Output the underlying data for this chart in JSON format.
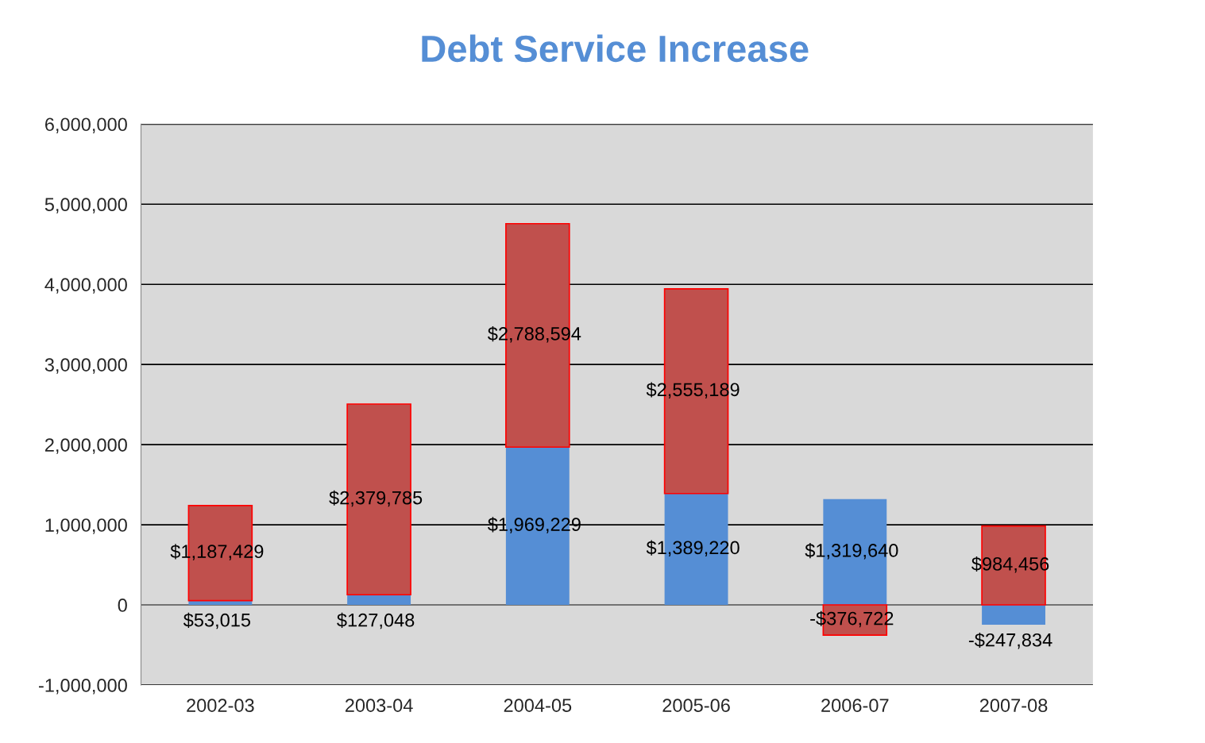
{
  "chart_data": {
    "type": "bar",
    "title": "Debt Service Increase",
    "stacked": true,
    "categories": [
      "2002-03",
      "2003-04",
      "2004-05",
      "2005-06",
      "2006-07",
      "2007-08"
    ],
    "series": [
      {
        "color": "#558ed5",
        "values": [
          53015,
          127048,
          1969229,
          1389220,
          1319640,
          -247834
        ],
        "value_labels": [
          "$53,015",
          "$127,048",
          "$1,969,229",
          "$1,389,220",
          "$1,319,640",
          "-$247,834"
        ]
      },
      {
        "color": "#c0504d",
        "values": [
          1187429,
          2379785,
          2788594,
          2555189,
          -376722,
          984456
        ],
        "value_labels": [
          "$1,187,429",
          "$2,379,785",
          "$2,788,594",
          "$2,555,189",
          "-$376,722",
          "$984,456"
        ]
      }
    ],
    "ylim": [
      -1000000,
      6000000
    ],
    "yticks": [
      {
        "value": -1000000,
        "label": "-1,000,000"
      },
      {
        "value": 0,
        "label": "0"
      },
      {
        "value": 1000000,
        "label": "1,000,000"
      },
      {
        "value": 2000000,
        "label": "2,000,000"
      },
      {
        "value": 3000000,
        "label": "3,000,000"
      },
      {
        "value": 4000000,
        "label": "4,000,000"
      },
      {
        "value": 5000000,
        "label": "5,000,000"
      },
      {
        "value": 6000000,
        "label": "6,000,000"
      }
    ],
    "grid": "y",
    "legend": false
  }
}
